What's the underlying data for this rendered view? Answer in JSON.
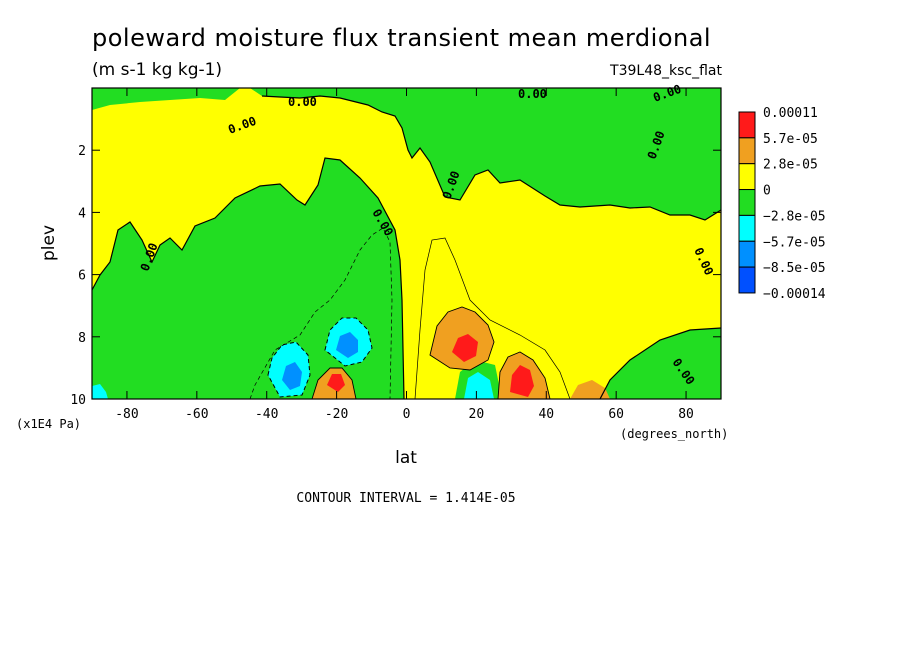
{
  "chart_data": {
    "type": "heatmap",
    "subtype": "filled-contour",
    "title": "poleward moisture flux transient mean merdional",
    "units": "(m s-1 kg kg-1)",
    "run_label": "T39L48_ksc_flat",
    "xlabel": "lat",
    "x_units": "(degrees_north)",
    "ylabel": "plev",
    "y_units": "(x1E4 Pa)",
    "xlim": [
      -90,
      90
    ],
    "ylim": [
      0,
      10
    ],
    "y_inverted": true,
    "x_ticks": [
      -80,
      -60,
      -40,
      -20,
      0,
      20,
      40,
      60,
      80
    ],
    "y_ticks": [
      2,
      4,
      6,
      8,
      10
    ],
    "contour_interval": "CONTOUR INTERVAL = 1.414E-05",
    "contour_label": "0.00",
    "colorbar": {
      "labels": [
        "0.00011",
        "5.7e-05",
        "2.8e-05",
        "0",
        "−2.8e-05",
        "−5.7e-05",
        "−8.5e-05",
        "−0.00014"
      ],
      "colors": [
        "#ff1a1a",
        "#f0a020",
        "#ffff00",
        "#22dd22",
        "#00ffff",
        "#0090ff",
        "#0050ff"
      ]
    },
    "regions": [
      {
        "kind": "negative",
        "lat_range": [
          -90,
          10
        ],
        "plev_range": [
          0.5,
          10
        ],
        "value_range": [
          -2.8e-05,
          0
        ]
      },
      {
        "kind": "negative",
        "lat_range": [
          -20,
          90
        ],
        "plev_range": [
          0.3,
          4.5
        ],
        "value_range": [
          -2.8e-05,
          0
        ]
      },
      {
        "kind": "positive",
        "lat_range": [
          5,
          90
        ],
        "plev_range": [
          4,
          10
        ],
        "value_range": [
          0,
          2.8e-05
        ]
      },
      {
        "kind": "maximum",
        "lat": 17,
        "plev": 8.4,
        "value": 0.00011
      },
      {
        "kind": "maximum",
        "lat": 33,
        "plev": 9.3,
        "value": 0.00011
      },
      {
        "kind": "maximum",
        "lat": -20,
        "plev": 9.3,
        "value": 0.00011
      },
      {
        "kind": "minimum",
        "lat": -20,
        "plev": 8.1,
        "value": -8.5e-05
      },
      {
        "kind": "minimum",
        "lat": -32,
        "plev": 9.2,
        "value": -8.5e-05
      },
      {
        "kind": "minimum",
        "lat": 20,
        "plev": 9.5,
        "value": -5.7e-05
      }
    ]
  }
}
